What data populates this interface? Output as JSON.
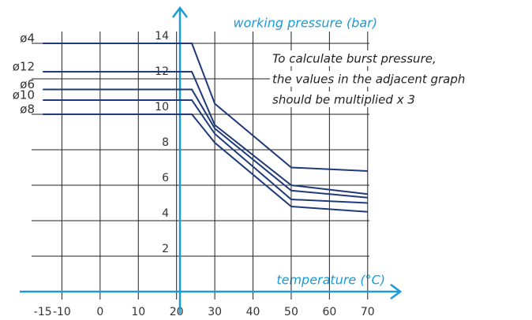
{
  "chart_data": {
    "type": "line",
    "y_label": "working pressure (bar)",
    "x_label": "temperature (°C)",
    "annotation": [
      "To calculate burst pressure,",
      "the values in the adjacent graph",
      "should be multiplied x 3"
    ],
    "x": [
      -15,
      24,
      30,
      50,
      70
    ],
    "series": [
      {
        "name": "ø4",
        "color": "#1f3a7a",
        "values": [
          14,
          14,
          10.6,
          7.0,
          6.8
        ]
      },
      {
        "name": "ø12",
        "color": "#1f3a7a",
        "values": [
          12.4,
          12.4,
          9.4,
          6.0,
          5.5
        ]
      },
      {
        "name": "ø6",
        "color": "#1f3a7a",
        "values": [
          11.4,
          11.4,
          9.2,
          5.7,
          5.3
        ]
      },
      {
        "name": "ø10",
        "color": "#1f3a7a",
        "values": [
          10.8,
          10.8,
          8.9,
          5.2,
          5.0
        ]
      },
      {
        "name": "ø8",
        "color": "#1f3a7a",
        "values": [
          10.0,
          10.0,
          8.4,
          4.8,
          4.5
        ]
      }
    ],
    "xlim": [
      -20,
      75
    ],
    "ylim": [
      0,
      16
    ],
    "xticks": [
      -15,
      -10,
      0,
      10,
      20,
      30,
      40,
      50,
      60,
      70
    ],
    "yticks": [
      2,
      4,
      6,
      8,
      10,
      12,
      14
    ],
    "grid": true,
    "axis_color": "#1b9bd7"
  }
}
